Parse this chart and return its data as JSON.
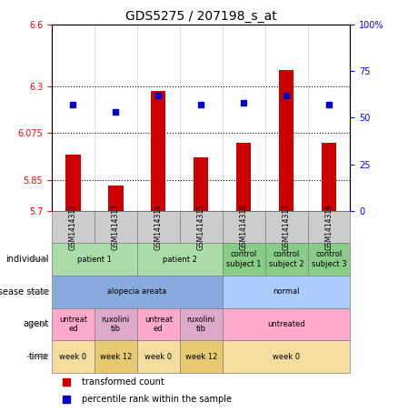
{
  "title": "GDS5275 / 207198_s_at",
  "samples": [
    "GSM1414312",
    "GSM1414313",
    "GSM1414314",
    "GSM1414315",
    "GSM1414316",
    "GSM1414317",
    "GSM1414318"
  ],
  "bar_values": [
    5.97,
    5.82,
    6.28,
    5.96,
    6.03,
    6.38,
    6.03
  ],
  "dot_values": [
    57,
    53,
    62,
    57,
    58,
    62,
    57
  ],
  "ylim_left": [
    5.7,
    6.6
  ],
  "ylim_right": [
    0,
    100
  ],
  "yticks_left": [
    5.7,
    5.85,
    6.075,
    6.3,
    6.6
  ],
  "ytick_labels_left": [
    "5.7",
    "5.85",
    "6.075",
    "6.3",
    "6.6"
  ],
  "yticks_right": [
    0,
    25,
    50,
    75,
    100
  ],
  "ytick_labels_right": [
    "0",
    "25",
    "50",
    "75",
    "100%"
  ],
  "hline_values": [
    5.85,
    6.075,
    6.3
  ],
  "bar_color": "#cc0000",
  "dot_color": "#0000cc",
  "bar_baseline": 5.7,
  "annotation_rows": [
    {
      "label": "individual",
      "cells": [
        {
          "text": "patient 1",
          "span": 2,
          "color": "#aaddaa"
        },
        {
          "text": "patient 2",
          "span": 2,
          "color": "#aaddaa"
        },
        {
          "text": "control\nsubject 1",
          "span": 1,
          "color": "#88cc88"
        },
        {
          "text": "control\nsubject 2",
          "span": 1,
          "color": "#88cc88"
        },
        {
          "text": "control\nsubject 3",
          "span": 1,
          "color": "#88cc88"
        }
      ]
    },
    {
      "label": "disease state",
      "cells": [
        {
          "text": "alopecia areata",
          "span": 4,
          "color": "#88aadd"
        },
        {
          "text": "normal",
          "span": 3,
          "color": "#aaccff"
        }
      ]
    },
    {
      "label": "agent",
      "cells": [
        {
          "text": "untreat\ned",
          "span": 1,
          "color": "#ffaacc"
        },
        {
          "text": "ruxolini\ntib",
          "span": 1,
          "color": "#ddaacc"
        },
        {
          "text": "untreat\ned",
          "span": 1,
          "color": "#ffaacc"
        },
        {
          "text": "ruxolini\ntib",
          "span": 1,
          "color": "#ddaacc"
        },
        {
          "text": "untreated",
          "span": 3,
          "color": "#ffaacc"
        }
      ]
    },
    {
      "label": "time",
      "cells": [
        {
          "text": "week 0",
          "span": 1,
          "color": "#f5dda0"
        },
        {
          "text": "week 12",
          "span": 1,
          "color": "#e8c870"
        },
        {
          "text": "week 0",
          "span": 1,
          "color": "#f5dda0"
        },
        {
          "text": "week 12",
          "span": 1,
          "color": "#e8c870"
        },
        {
          "text": "week 0",
          "span": 3,
          "color": "#f5dda0"
        }
      ]
    }
  ],
  "legend_items": [
    {
      "label": "transformed count",
      "color": "#cc0000",
      "marker": "s"
    },
    {
      "label": "percentile rank within the sample",
      "color": "#0000cc",
      "marker": "s"
    }
  ]
}
